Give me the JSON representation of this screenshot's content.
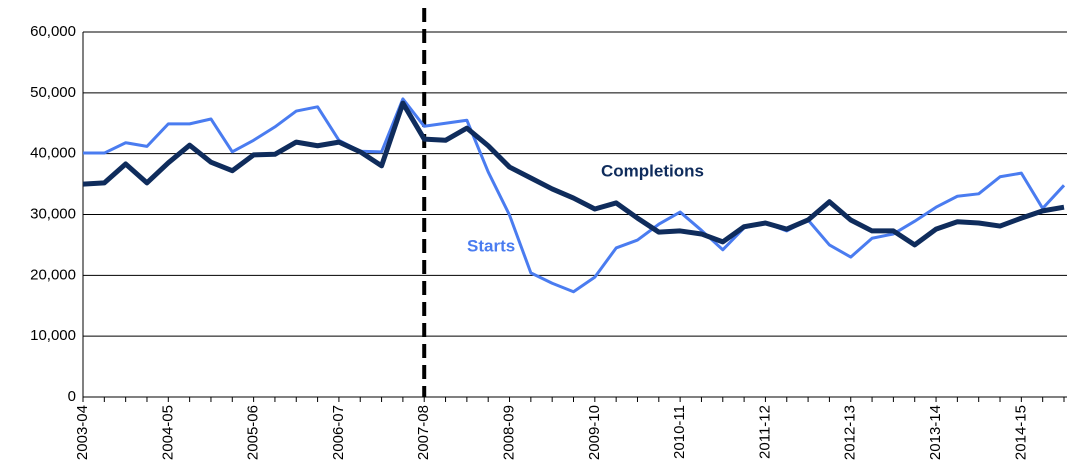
{
  "chart_data": {
    "type": "line",
    "categories": [
      "2003-04",
      null,
      null,
      null,
      "2004-05",
      null,
      null,
      null,
      "2005-06",
      null,
      null,
      null,
      "2006-07",
      null,
      null,
      null,
      "2007-08",
      null,
      null,
      null,
      "2008-09",
      null,
      null,
      null,
      "2009-10",
      null,
      null,
      null,
      "2010-11",
      null,
      null,
      null,
      "2011-12",
      null,
      null,
      null,
      "2012-13",
      null,
      null,
      null,
      "2013-14",
      null,
      null,
      null,
      "2014-15",
      null,
      null
    ],
    "series": [
      {
        "name": "Starts",
        "color": "#4a7cf0",
        "values": [
          40100,
          40100,
          41800,
          41200,
          44900,
          44900,
          45700,
          40300,
          42200,
          44400,
          47000,
          47700,
          42200,
          40400,
          40300,
          49000,
          44500,
          45000,
          45500,
          37000,
          29900,
          20400,
          18700,
          17300,
          19700,
          24500,
          25800,
          28400,
          30400,
          27400,
          24200,
          27800,
          28600,
          27300,
          29100,
          25000,
          23000,
          26100,
          26800,
          28900,
          31200,
          33000,
          33400,
          36200,
          36800,
          31000,
          34800
        ]
      },
      {
        "name": "Completions",
        "color": "#0f2c5c",
        "values": [
          35000,
          35200,
          38300,
          35200,
          38500,
          41400,
          38600,
          37200,
          39800,
          39900,
          41900,
          41300,
          41900,
          40300,
          38000,
          48300,
          42400,
          42200,
          44200,
          41300,
          37800,
          36000,
          34200,
          32700,
          30900,
          31900,
          29400,
          27100,
          27300,
          26800,
          25500,
          28000,
          28600,
          27600,
          29100,
          32100,
          29100,
          27300,
          27300,
          25000,
          27600,
          28800,
          28600,
          28100,
          29400,
          30600,
          31200
        ]
      }
    ],
    "ylim": [
      0,
      60000
    ],
    "yticks": [
      0,
      {
        "value": 10000,
        "label": "10,000"
      },
      {
        "value": 20000,
        "label": "20,000"
      },
      {
        "value": 30000,
        "label": "30,000"
      },
      {
        "value": 40000,
        "label": "40,000"
      },
      {
        "value": 50000,
        "label": "50,000"
      },
      {
        "value": 60000,
        "label": "60,000"
      }
    ],
    "grid": true,
    "vline": "2007-08"
  }
}
